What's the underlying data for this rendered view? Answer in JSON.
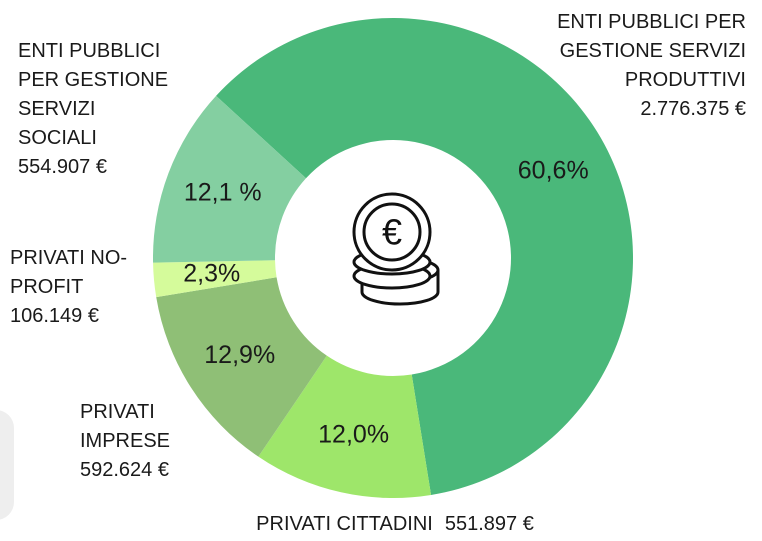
{
  "chart_data": {
    "type": "donut",
    "categories": [
      "ENTI PUBBLICI PER GESTIONE SERVIZI PRODUTTIVI",
      "PRIVATI CITTADINI",
      "PRIVATI IMPRESE",
      "PRIVATI NO-PROFIT",
      "ENTI PUBBLICI PER GESTIONE SERVIZI SOCIALI"
    ],
    "values": [
      60.6,
      12.0,
      12.9,
      2.3,
      12.1
    ],
    "value_labels": [
      "60,6%",
      "12,0%",
      "12,9%",
      "2,3%",
      "12,1 %"
    ],
    "amounts": [
      2776375,
      551897,
      592624,
      106149,
      554907
    ],
    "amount_labels": [
      "2.776.375 €",
      "551.897 €",
      "592.624 €",
      "106.149 €",
      "554.907 €"
    ],
    "colors": [
      "#4ab87a",
      "#9ee66a",
      "#8fbf76",
      "#d5fb9b",
      "#84cfa1"
    ]
  }
}
